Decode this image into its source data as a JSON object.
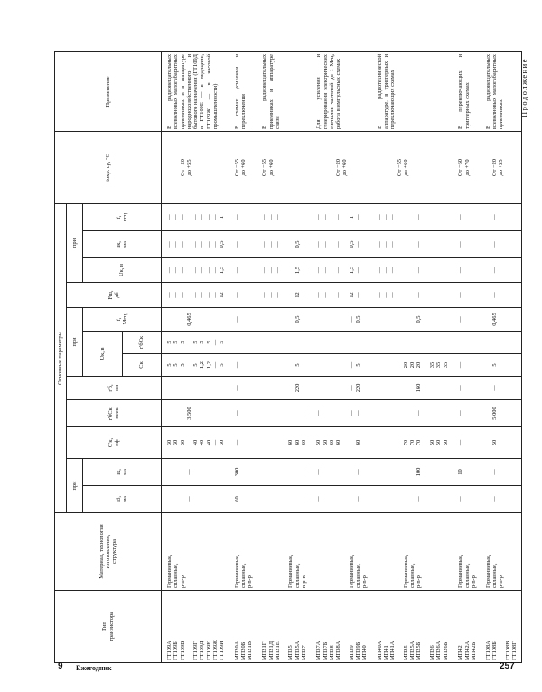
{
  "page_title": "Продолжение",
  "footer": {
    "sheet": "9",
    "book": "Ежегодник",
    "page": "257"
  },
  "header": {
    "type": "Тип\nтранзистора",
    "material": "Материал, технология\nизготовления,\nструктура",
    "main_params": "Основные параметры",
    "pri": "при",
    "ib": "Iб,\nма",
    "ik": "Iк,\nма",
    "ck": "C'к,\nпф",
    "rbck": "r'бCк,\nпсек",
    "rb": "r'б,\nом",
    "uk": "Uк, в",
    "uk_ck": "Cк",
    "uk_rbck": "r'бCк",
    "f_mhz": "f,\nМгц",
    "fsh": "Fш,\nдб",
    "uk2": "Uк, в",
    "ik2": "Iк,\nма",
    "f_khz": "f,\nкгц",
    "t": "tокр. ср, °C",
    "app": "Применение"
  },
  "rows": [
    {
      "type": "ГТ109А\nГТ109Б\nГТ109В\n\nГТ109Г\nГТ109Д\nГТ109Е\nГТ109Ж\nГТ109И",
      "mat": "Германиевые,\nсплавные,\np-n-p",
      "ib": "\n\n\n—",
      "ik": "\n\n\n—",
      "ck": "30\n30\n30\n\n40\n40\n40\n—\n30",
      "rbck": "\n\n\n3 500",
      "rb": "",
      "uk_ck": "5\n5\n5\n\n5\n1,2\n1,2\n—\n5",
      "uk_rbck": "5\n5\n5\n\n5\n5\n5\n—\n5",
      "f": "\n\n\n0,465",
      "fsh": "—\n—\n—\n\n—\n—\n—\n—\n12",
      "uk2": "—\n—\n—\n\n—\n—\n—\n—\n1,5",
      "ik2": "—\n—\n—\n\n—\n—\n—\n—\n0,5",
      "fk": "—\n—\n—\n\n—\n—\n—\n—\n1",
      "t": "\n\nОт −20\nдо +55",
      "app": "В радиовещательных всеволновых малогабаритных приемниках и в аппаратуре народнохозяйственного и бытового назначения (ГТ109Д и ГТ109Е — в медицине, ГТ109Ж — в часовой промышленности)"
    },
    {
      "type": "МП20А\nМП20Б\nМП21В",
      "mat": "Германиевые,\nсплавные,\np-n-p",
      "ib": "60",
      "ik": "300",
      "ck": "—",
      "rbck": "—",
      "rb": "—",
      "uk_ck": "—",
      "uk_rbck": "",
      "f": "—",
      "fsh": "—",
      "uk2": "—",
      "ik2": "—",
      "fk": "—",
      "t": "От −55\nдо +60",
      "app": "В схемах усиления и переключения"
    },
    {
      "type": "МП21Г\nМП21Д\nМП21Е\n\nМП35\nМП35А\nМП37",
      "mat": "\n\n\n\nГерманиевые,\nсплавные,\nn-p-n",
      "ib": "\n\n\n\n\n\n—",
      "ik": "\n\n\n\n\n\n—",
      "ck": "\n\n\n\n60\n60\n60",
      "rbck": "\n\n\n\n\n\n—",
      "rb": "\n\n\n\n\n220",
      "uk_ck": "\n\n\n\n\n5",
      "uk_rbck": "",
      "f": "\n\n\n\n\n0,5",
      "fsh": "—\n—\n—\n\n\n12\n—",
      "uk2": "—\n—\n—\n\n\n1,5\n—",
      "ik2": "—\n—\n—\n\n\n0,5\n—",
      "fk": "—\n—\n—",
      "t": "От −55\nдо +60",
      "app": "В радиовещательных приемниках и аппаратуре связи"
    },
    {
      "type": "МП37А\nМП37Б\nМП38\nМП38А\n\nМП39\nМП39Б\nМП40",
      "mat": "\n\n\n\n\nГерманиевые,\nсплавные,\np-n-p",
      "ib": "—\n\n\n\n\n\n—",
      "ik": "—\n\n\n\n\n\n—",
      "ck": "50\n50\n60\n60\n\n\n60",
      "rbck": "—\n\n\n\n\n—\n—",
      "rb": "\n\n\n\n\n—\n220",
      "uk_ck": "\n\n\n\n\n—\n5",
      "uk_rbck": "",
      "f": "\n\n\n\n\n—\n0,5",
      "fsh": "—\n—\n—\n—\n\n12\n—",
      "uk2": "—\n—\n—\n—\n\n1,5\n—",
      "ik2": "—\n—\n—\n—\n\n0,5\n—",
      "fk": "—\n—\n—\n—\n\n1\n—",
      "t": "\n\n\nОт −20\nдо +60",
      "app": "Для усиления и генерирования электрических сигналов частотой до 1 Мгц, работа в импульсных схемах"
    },
    {
      "type": "МП40А\nМП41\nМП41А\n\nМП25\nМП25А\nМП25Б\n\nМП26\nМП26А\nМП26Б",
      "mat": "\n\n\n\nГерманиевые,\nсплавные,\np-n-p",
      "ib": "\n\n\n\n\n\n—",
      "ik": "\n\n\n\n\n\n100",
      "ck": "\n\n\n\n70\n70\n70\n\n50\n50\n50",
      "rbck": "\n\n\n\n\n\n—",
      "rb": "\n\n\n\n\n\n160",
      "uk_ck": "\n\n\n\n20\n20\n20\n\n35\n35\n35",
      "uk_rbck": "",
      "f": "\n\n\n\n\n\n0,5",
      "fsh": "—\n—\n—\n\n\n\n—",
      "uk2": "—\n—\n—\n\n\n\n—",
      "ik2": "—\n—\n—\n\n\n\n—",
      "fk": "—\n—\n—\n\n\n\n—",
      "t": "\n\n\nОт −55\nдо +60",
      "app": "В радиотехнической аппаратуре, в триггерных и переключающих схемах"
    },
    {
      "type": "МП42\nМП42А\nМП42Б",
      "mat": "Германиевые,\nсплавные,\np-n-p",
      "ib": "—",
      "ik": "10",
      "ck": "—",
      "rbck": "—",
      "rb": "—",
      "uk_ck": "—",
      "uk_rbck": "",
      "f": "—",
      "fsh": "—",
      "uk2": "—",
      "ik2": "—",
      "fk": "—",
      "t": "От −60\nдо +70",
      "app": "В переключающих и триггерных схемах"
    },
    {
      "type": "ГТ108А\nГТ108Б\n\nГТ108В\nГТ108Г",
      "mat": "Германиевые,\nсплавные,\np-n-p",
      "ib": "\n—",
      "ik": "\n—",
      "ck": "\n50",
      "rbck": "\n5 000",
      "rb": "\n—",
      "uk_ck": "\n5",
      "uk_rbck": "",
      "f": "\n0,465",
      "fsh": "\n—",
      "uk2": "\n—",
      "ik2": "\n—",
      "fk": "\n—",
      "t": "\nОт −20\nдо +55",
      "app": "В радиовещательных всеволновых малогабаритных приемниках"
    }
  ]
}
